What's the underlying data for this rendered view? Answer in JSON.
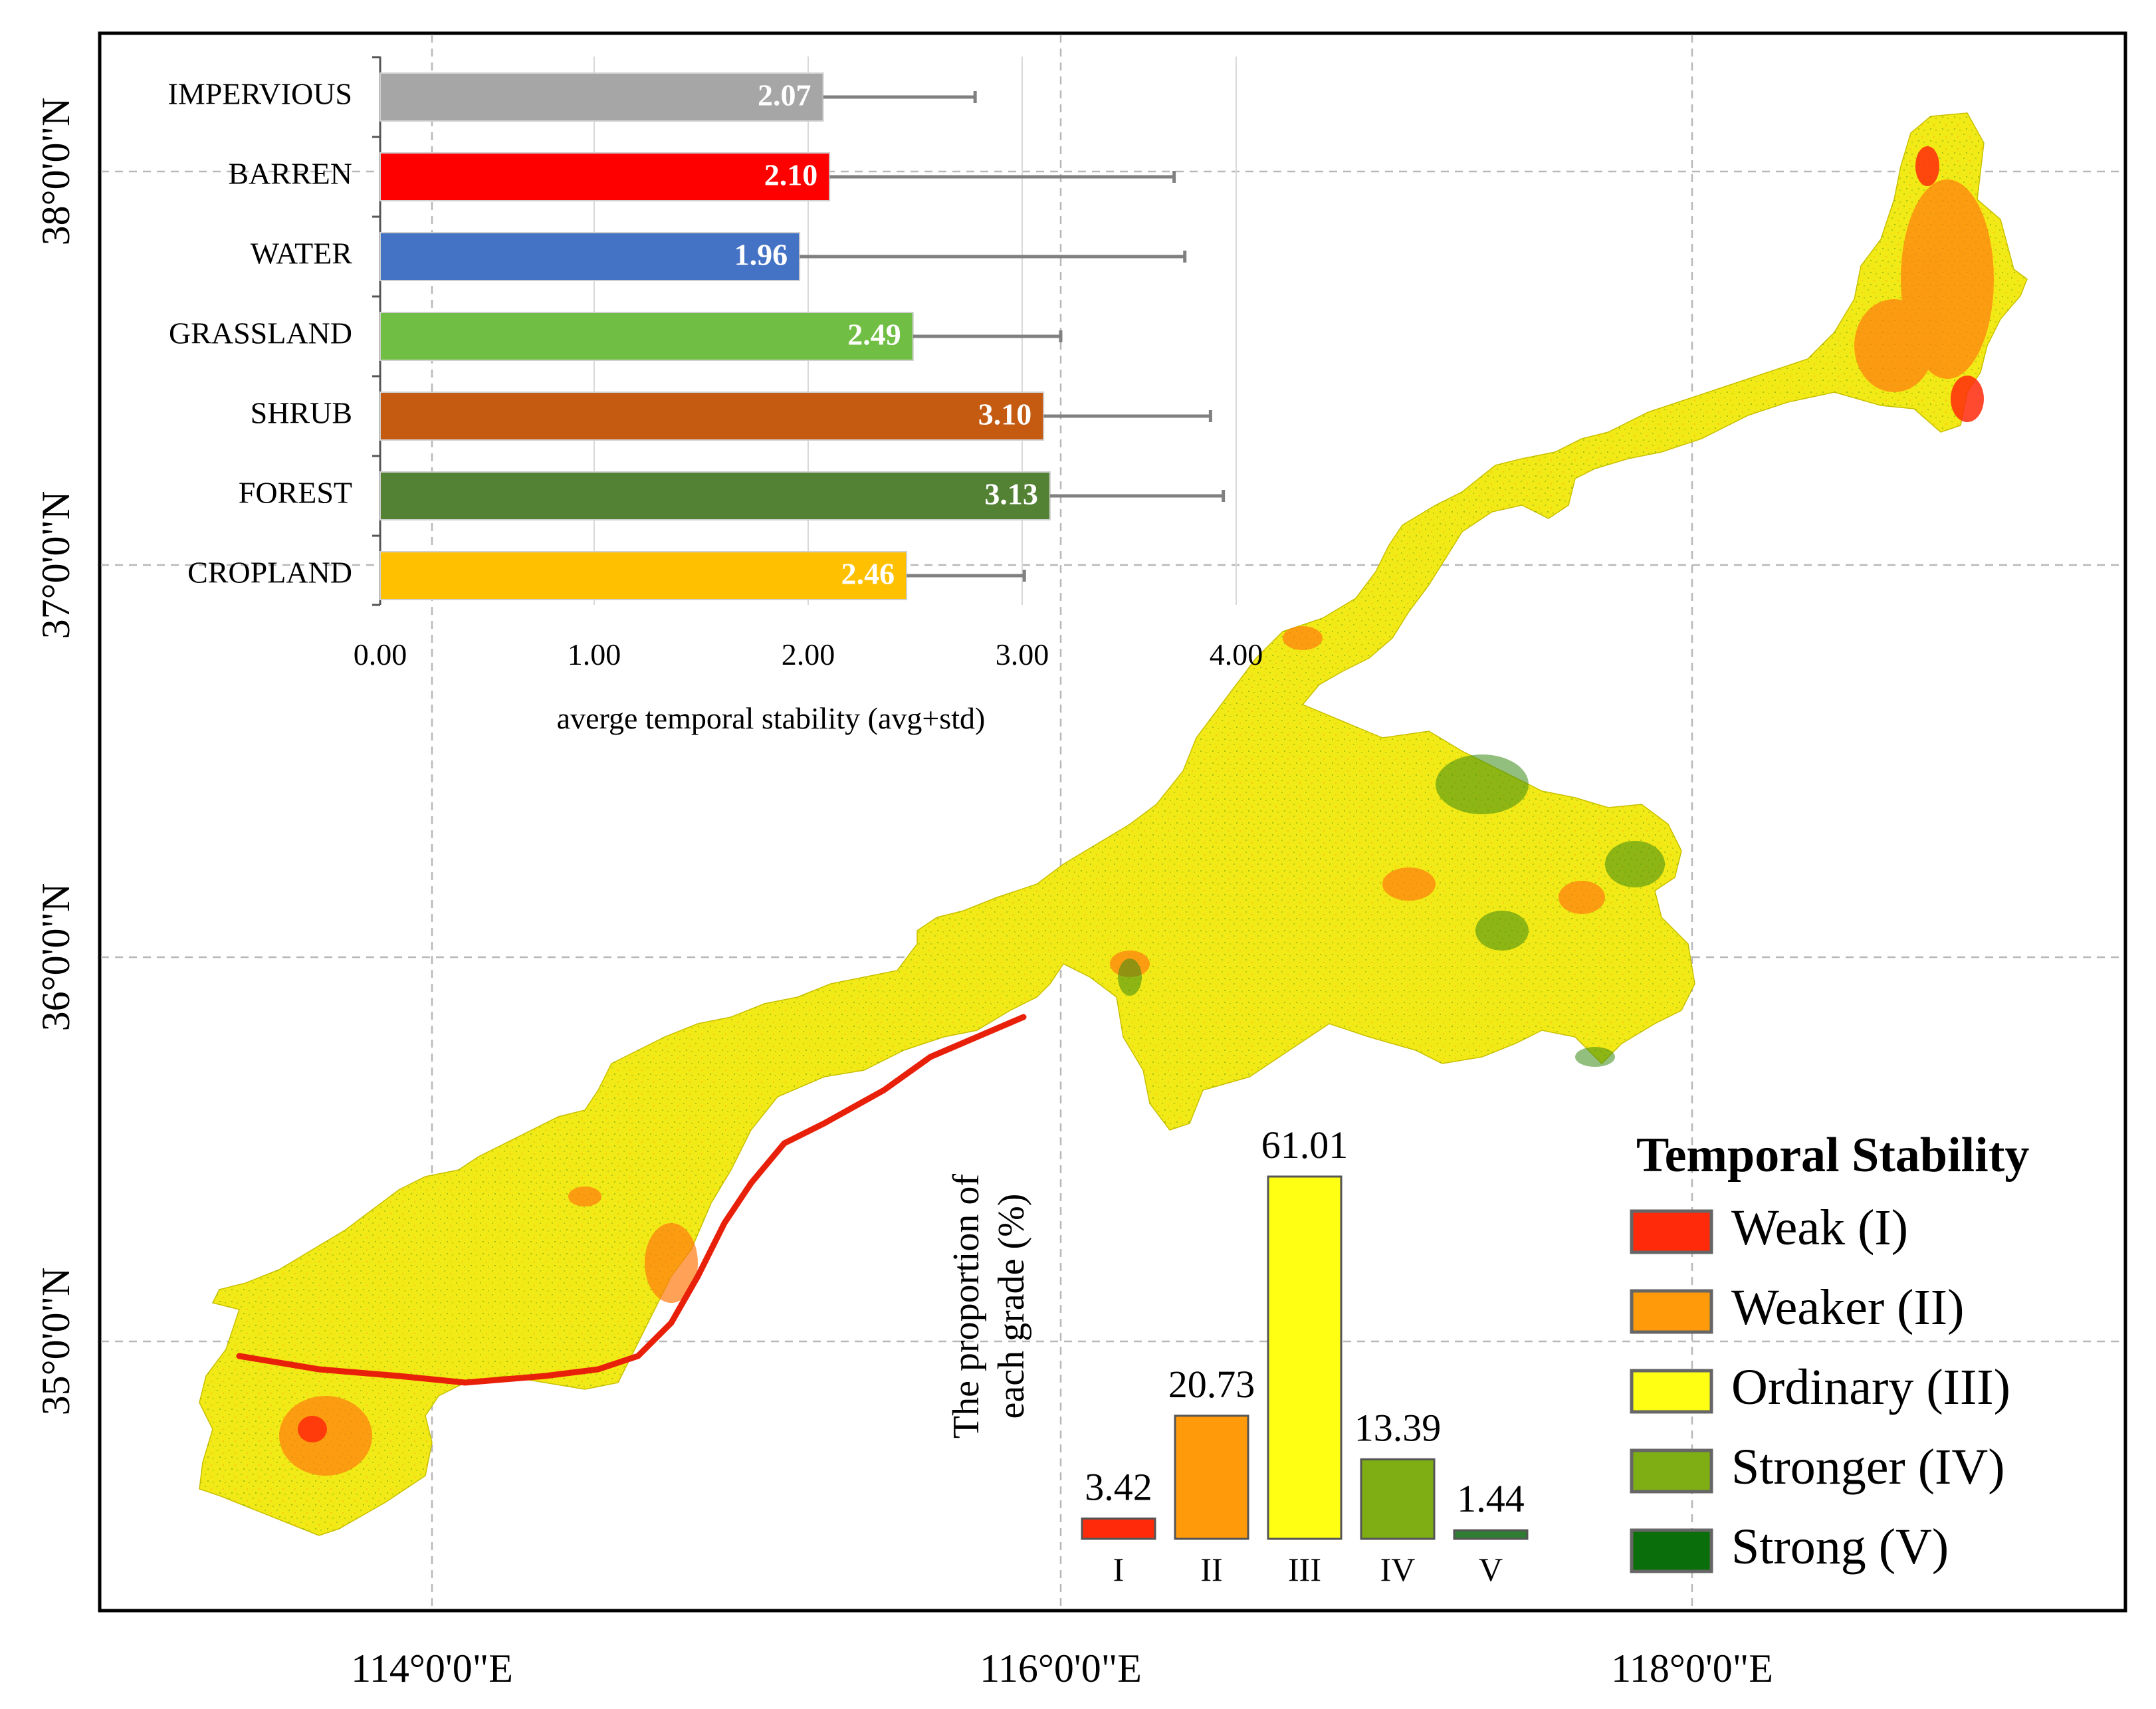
{
  "map": {
    "lat_labels": [
      "38°0'0\"N",
      "37°0'0\"N",
      "36°0'0\"N",
      "35°0'0\"N"
    ],
    "lon_labels": [
      "114°0'0\"E",
      "116°0'0\"E",
      "118°0'0\"E"
    ]
  },
  "legend": {
    "title": "Temporal Stability",
    "items": [
      {
        "label": "Weak (I)",
        "color": "#ff2a0a"
      },
      {
        "label": "Weaker (II)",
        "color": "#ff9a0a"
      },
      {
        "label": "Ordinary (III)",
        "color": "#ffff14"
      },
      {
        "label": "Stronger (IV)",
        "color": "#7fae14"
      },
      {
        "label": "Strong (V)",
        "color": "#0a6e0a"
      }
    ]
  },
  "chart_data": [
    {
      "type": "bar",
      "orientation": "horizontal",
      "title": "",
      "xlabel": "averge temporal stability (avg+std)",
      "ylabel": "",
      "xlim": [
        0,
        4.0
      ],
      "x_ticks": [
        "0.00",
        "1.00",
        "2.00",
        "3.00",
        "4.00"
      ],
      "categories": [
        "IMPERVIOUS",
        "BARREN",
        "WATER",
        "GRASSLAND",
        "SHRUB",
        "FOREST",
        "CROPLAND"
      ],
      "values": [
        2.07,
        2.1,
        1.96,
        2.49,
        3.1,
        3.13,
        2.46
      ],
      "value_labels": [
        "2.07",
        "2.10",
        "1.96",
        "2.49",
        "3.10",
        "3.13",
        "2.46"
      ],
      "error_upper": [
        2.78,
        3.71,
        3.76,
        3.18,
        3.88,
        3.94,
        3.01
      ],
      "colors": [
        "#a6a6a6",
        "#ff0000",
        "#4472c4",
        "#70bf44",
        "#c55a11",
        "#548235",
        "#ffc000"
      ]
    },
    {
      "type": "bar",
      "title": "",
      "xlabel": "",
      "ylabel": "The proportion of each grade (%)",
      "ylabel_lines": [
        "The proportion of",
        "each grade (%)"
      ],
      "ylim": [
        0,
        61.01
      ],
      "categories": [
        "I",
        "II",
        "III",
        "IV",
        "V"
      ],
      "values": [
        3.42,
        20.73,
        61.01,
        13.39,
        1.44
      ],
      "value_labels": [
        "3.42",
        "20.73",
        "61.01",
        "13.39",
        "1.44"
      ],
      "colors": [
        "#ff2a0a",
        "#ff9a0a",
        "#ffff14",
        "#7fae14",
        "#2e7d32"
      ]
    }
  ]
}
